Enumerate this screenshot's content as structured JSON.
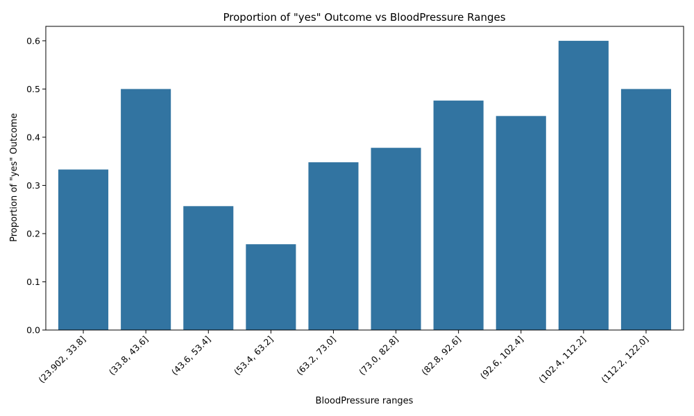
{
  "chart_data": {
    "type": "bar",
    "title": "Proportion of \"yes\" Outcome vs BloodPressure Ranges",
    "xlabel": "BloodPressure ranges",
    "ylabel": "Proportion of \"yes\" Outcome",
    "categories": [
      "(23.902, 33.8]",
      "(33.8, 43.6]",
      "(43.6, 53.4]",
      "(53.4, 63.2]",
      "(63.2, 73.0]",
      "(73.0, 82.8]",
      "(82.8, 92.6]",
      "(92.6, 102.4]",
      "(102.4, 112.2]",
      "(112.2, 122.0]"
    ],
    "values": [
      0.333,
      0.5,
      0.257,
      0.178,
      0.348,
      0.378,
      0.476,
      0.444,
      0.6,
      0.5
    ],
    "ylim": [
      0,
      0.63
    ],
    "yticks": [
      "0.0",
      "0.1",
      "0.2",
      "0.3",
      "0.4",
      "0.5",
      "0.6"
    ],
    "bar_color": "#3274a1",
    "grid": false,
    "legend": "none"
  }
}
